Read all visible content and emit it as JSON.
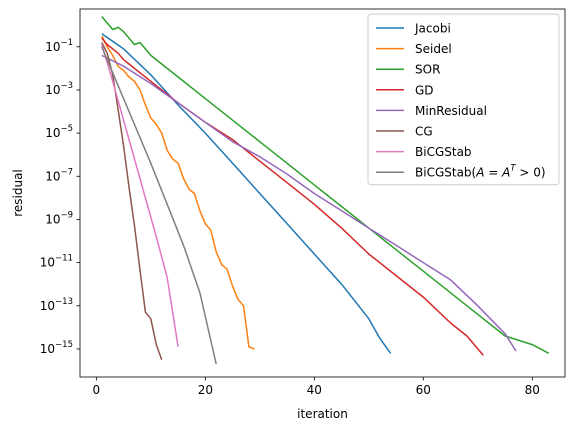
{
  "chart_data": {
    "type": "line",
    "title": "",
    "xlabel": "iteration",
    "ylabel": "residual",
    "xscale": "linear",
    "yscale": "log",
    "xlim": [
      -3,
      86
    ],
    "ylim_exp": [
      -16.3,
      0.75
    ],
    "xticks": [
      0,
      20,
      40,
      60,
      80
    ],
    "yticks_exp": [
      -15,
      -13,
      -11,
      -9,
      -7,
      -5,
      -3,
      -1
    ],
    "legend": {
      "placement": "top-right"
    },
    "series": [
      {
        "name": "Jacobi",
        "color": "#1f77b4",
        "points": [
          [
            1,
            -0.4
          ],
          [
            5,
            -1.1
          ],
          [
            10,
            -2.3
          ],
          [
            15,
            -3.7
          ],
          [
            20,
            -5.0
          ],
          [
            25,
            -6.4
          ],
          [
            30,
            -7.8
          ],
          [
            35,
            -9.2
          ],
          [
            40,
            -10.6
          ],
          [
            45,
            -12.0
          ],
          [
            50,
            -13.6
          ],
          [
            52,
            -14.5
          ],
          [
            54,
            -15.2
          ]
        ]
      },
      {
        "name": "Seidel",
        "color": "#ff7f0e",
        "points": [
          [
            1,
            -0.5
          ],
          [
            2,
            -1.0
          ],
          [
            3,
            -1.4
          ],
          [
            4,
            -1.9
          ],
          [
            5,
            -2.1
          ],
          [
            6,
            -2.4
          ],
          [
            7,
            -2.6
          ],
          [
            8,
            -3.0
          ],
          [
            9,
            -3.7
          ],
          [
            10,
            -4.3
          ],
          [
            11,
            -4.6
          ],
          [
            12,
            -5.0
          ],
          [
            13,
            -5.8
          ],
          [
            14,
            -6.2
          ],
          [
            15,
            -6.4
          ],
          [
            16,
            -7.1
          ],
          [
            17,
            -7.6
          ],
          [
            18,
            -7.8
          ],
          [
            19,
            -8.6
          ],
          [
            20,
            -9.2
          ],
          [
            21,
            -9.5
          ],
          [
            22,
            -10.5
          ],
          [
            23,
            -11.1
          ],
          [
            24,
            -11.3
          ],
          [
            25,
            -12.1
          ],
          [
            26,
            -12.7
          ],
          [
            27,
            -13.0
          ],
          [
            28,
            -14.9
          ],
          [
            29,
            -15.0
          ]
        ]
      },
      {
        "name": "SOR",
        "color": "#2ca02c",
        "points": [
          [
            1,
            0.4
          ],
          [
            2,
            0.1
          ],
          [
            3,
            -0.2
          ],
          [
            4,
            -0.1
          ],
          [
            5,
            -0.3
          ],
          [
            6,
            -0.6
          ],
          [
            7,
            -0.9
          ],
          [
            8,
            -0.8
          ],
          [
            9,
            -1.1
          ],
          [
            10,
            -1.4
          ],
          [
            15,
            -2.4
          ],
          [
            20,
            -3.4
          ],
          [
            25,
            -4.4
          ],
          [
            30,
            -5.4
          ],
          [
            35,
            -6.4
          ],
          [
            40,
            -7.4
          ],
          [
            45,
            -8.4
          ],
          [
            50,
            -9.4
          ],
          [
            55,
            -10.4
          ],
          [
            60,
            -11.4
          ],
          [
            65,
            -12.4
          ],
          [
            70,
            -13.4
          ],
          [
            75,
            -14.4
          ],
          [
            80,
            -14.8
          ],
          [
            83,
            -15.2
          ]
        ]
      },
      {
        "name": "GD",
        "color": "#d62728",
        "points": [
          [
            1,
            -0.6
          ],
          [
            2,
            -0.9
          ],
          [
            3,
            -1.1
          ],
          [
            4,
            -1.3
          ],
          [
            5,
            -1.6
          ],
          [
            6,
            -1.8
          ],
          [
            8,
            -2.2
          ],
          [
            10,
            -2.6
          ],
          [
            15,
            -3.6
          ],
          [
            20,
            -4.5
          ],
          [
            25,
            -5.3
          ],
          [
            30,
            -6.3
          ],
          [
            35,
            -7.3
          ],
          [
            40,
            -8.3
          ],
          [
            45,
            -9.4
          ],
          [
            50,
            -10.6
          ],
          [
            55,
            -11.6
          ],
          [
            60,
            -12.6
          ],
          [
            65,
            -13.8
          ],
          [
            68,
            -14.4
          ],
          [
            71,
            -15.3
          ]
        ]
      },
      {
        "name": "MinResidual",
        "color": "#9467bd",
        "points": [
          [
            1,
            -1.4
          ],
          [
            5,
            -1.9
          ],
          [
            10,
            -2.7
          ],
          [
            15,
            -3.6
          ],
          [
            20,
            -4.5
          ],
          [
            25,
            -5.4
          ],
          [
            30,
            -6.1
          ],
          [
            35,
            -6.9
          ],
          [
            40,
            -7.8
          ],
          [
            45,
            -8.6
          ],
          [
            50,
            -9.4
          ],
          [
            55,
            -10.2
          ],
          [
            60,
            -11.0
          ],
          [
            65,
            -11.8
          ],
          [
            70,
            -13.0
          ],
          [
            75,
            -14.3
          ],
          [
            77,
            -15.1
          ]
        ]
      },
      {
        "name": "CG",
        "color": "#8c564b",
        "points": [
          [
            1,
            -0.8
          ],
          [
            2,
            -1.3
          ],
          [
            3,
            -2.3
          ],
          [
            4,
            -3.9
          ],
          [
            5,
            -5.6
          ],
          [
            6,
            -7.5
          ],
          [
            7,
            -9.3
          ],
          [
            8,
            -11.3
          ],
          [
            9,
            -13.3
          ],
          [
            10,
            -13.6
          ],
          [
            11,
            -14.8
          ],
          [
            12,
            -15.5
          ]
        ]
      },
      {
        "name": "BiCGStab",
        "color": "#e377c2",
        "points": [
          [
            1,
            -0.9
          ],
          [
            3,
            -2.6
          ],
          [
            5,
            -4.4
          ],
          [
            7,
            -6.2
          ],
          [
            9,
            -8.0
          ],
          [
            11,
            -9.8
          ],
          [
            13,
            -11.7
          ],
          [
            15,
            -14.9
          ]
        ]
      },
      {
        "name": "BiCGStab($A=A^T>0$)",
        "color": "#7f7f7f",
        "points": [
          [
            1,
            -1.0
          ],
          [
            4,
            -2.8
          ],
          [
            7,
            -4.6
          ],
          [
            10,
            -6.4
          ],
          [
            13,
            -8.3
          ],
          [
            16,
            -10.2
          ],
          [
            19,
            -12.4
          ],
          [
            22,
            -15.7
          ]
        ]
      }
    ]
  }
}
